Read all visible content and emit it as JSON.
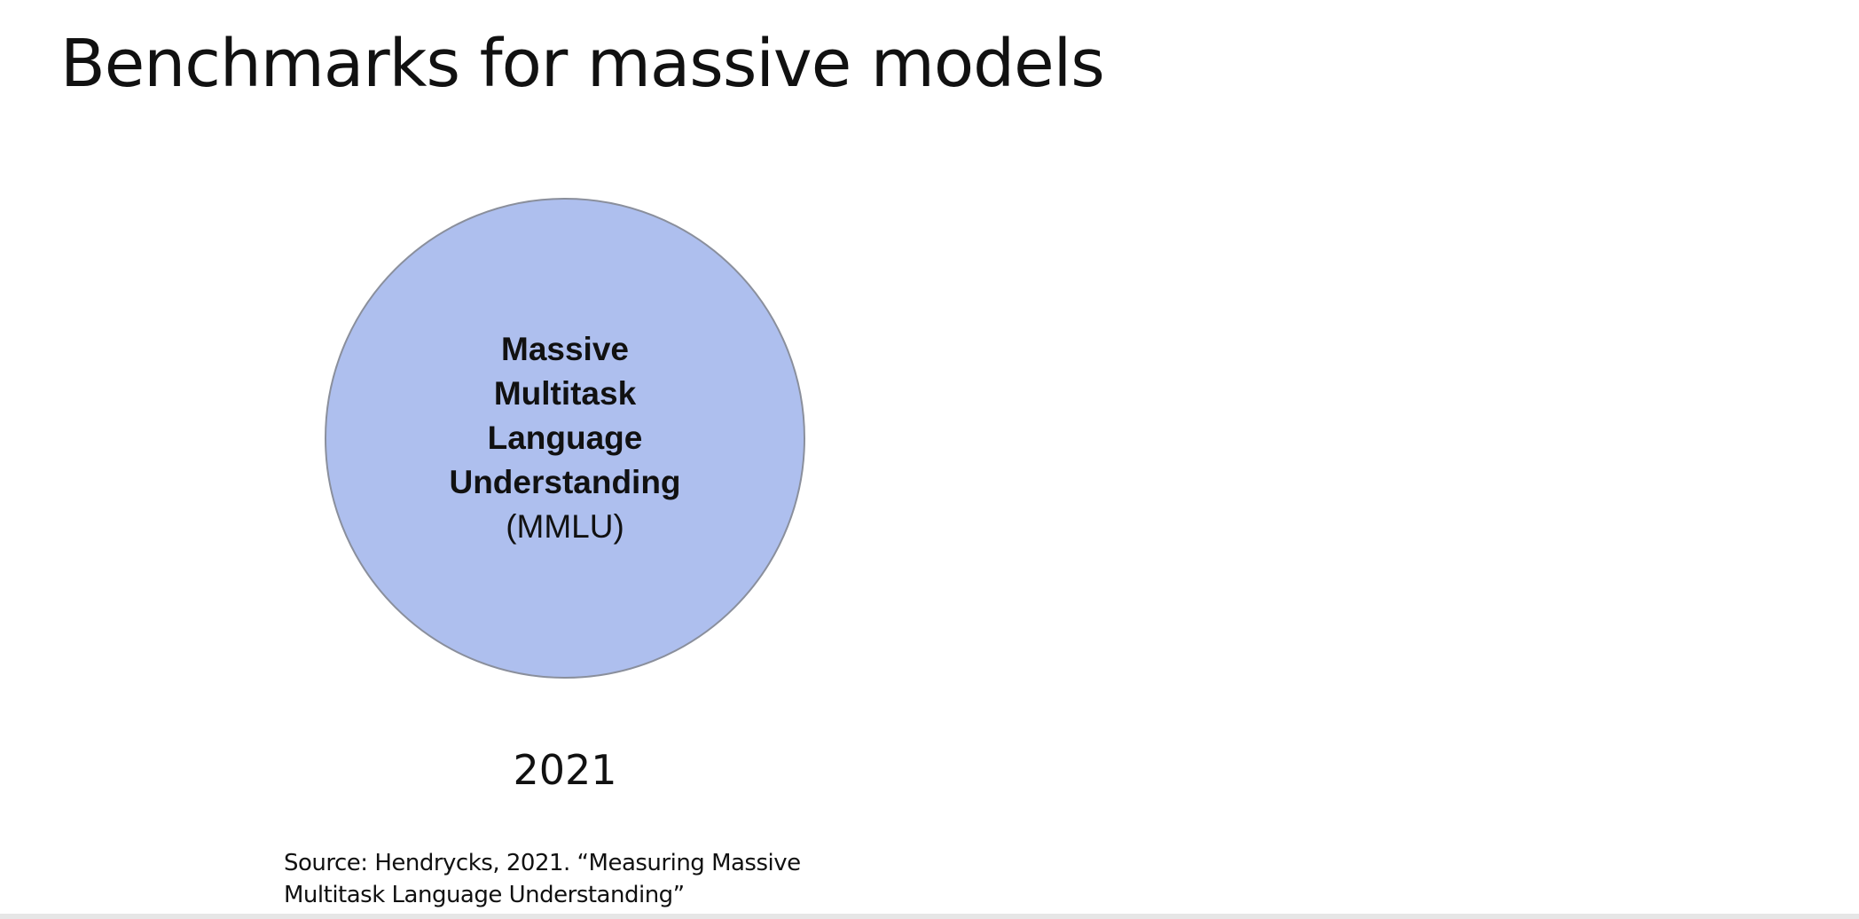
{
  "slide": {
    "title": "Benchmarks for massive models",
    "circle": {
      "lines": [
        "Massive",
        "Multitask",
        "Language",
        "Understanding"
      ],
      "abbreviation": "(MMLU)",
      "fill_color": "#aebfee"
    },
    "year": "2021",
    "source": {
      "line1": "Source: Hendrycks, 2021. “Measuring Massive",
      "line2": "Multitask Language Understanding”"
    }
  }
}
